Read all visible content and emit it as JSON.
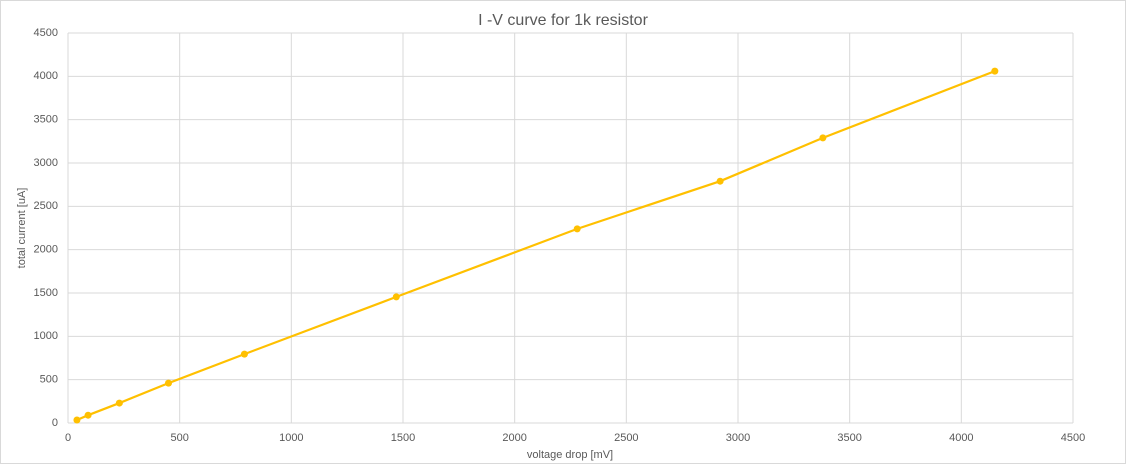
{
  "chart_data": {
    "type": "line",
    "title": "I -V curve for 1k resistor",
    "x_label": "voltage drop [mV]",
    "y_label": "total current [uA]",
    "x": [
      40,
      90,
      230,
      450,
      790,
      1470,
      2280,
      2920,
      3380,
      4150
    ],
    "series": [
      {
        "name": "total current",
        "color": "#ffc000",
        "values": [
          35,
          90,
          230,
          460,
          795,
          1455,
          2240,
          2790,
          3290,
          4060
        ]
      }
    ],
    "xlim": [
      0,
      4500
    ],
    "xticks": [
      0,
      500,
      1000,
      1500,
      2000,
      2500,
      3000,
      3500,
      4000,
      4500
    ],
    "ylim": [
      0,
      4500
    ],
    "yticks": [
      0,
      500,
      1000,
      1500,
      2000,
      2500,
      3000,
      3500,
      4000,
      4500
    ],
    "grid": true,
    "markers": true
  }
}
